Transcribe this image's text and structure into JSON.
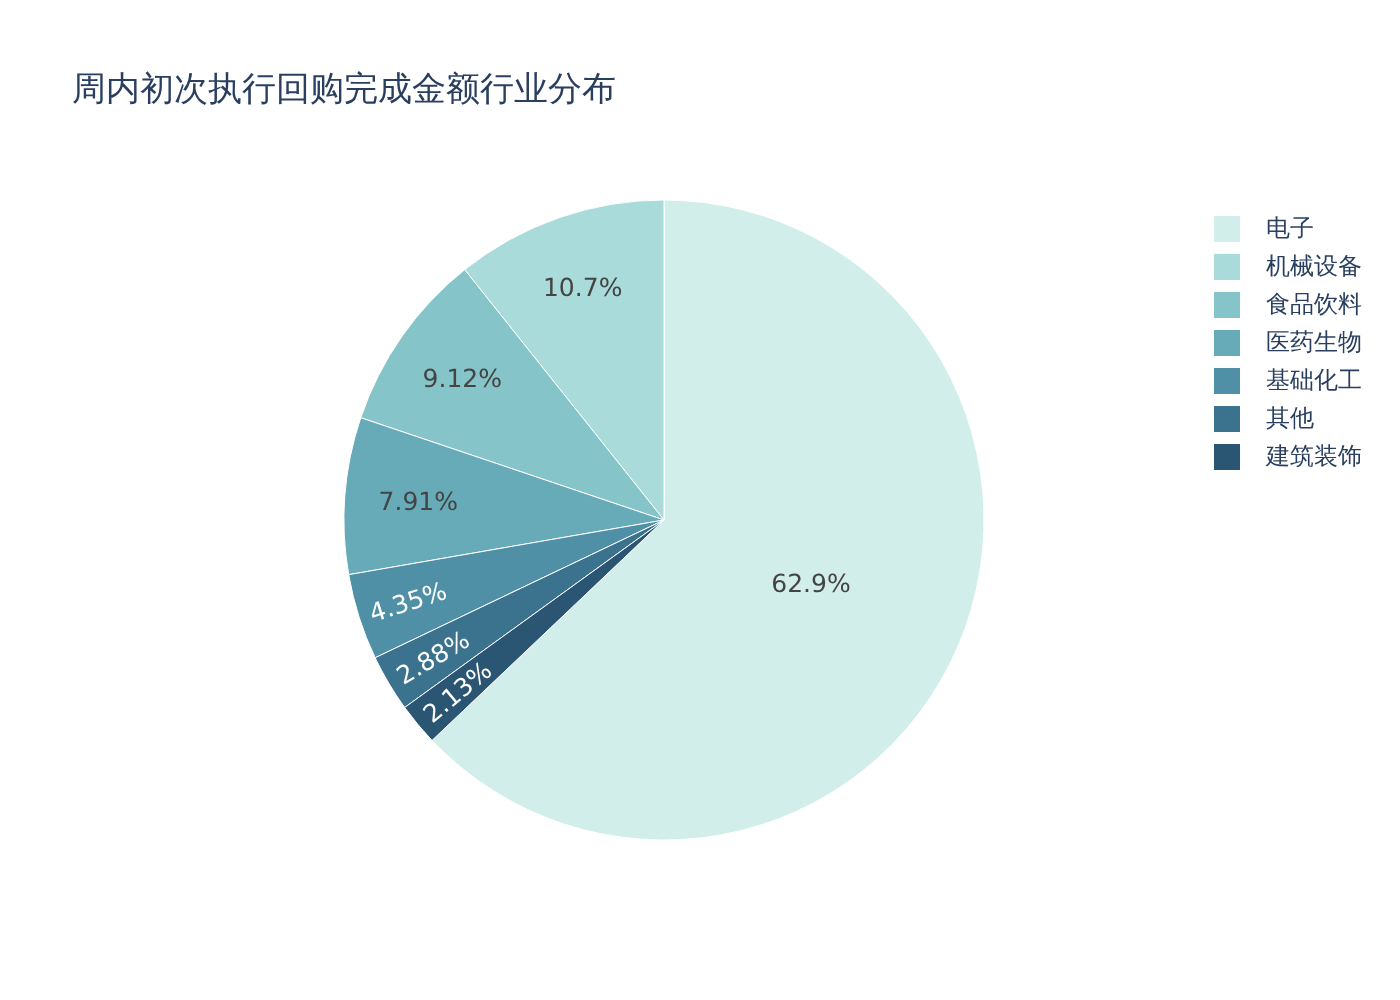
{
  "chart_data": {
    "type": "pie",
    "title": "周内初次执行回购完成金额行业分布",
    "categories": [
      "电子",
      "机械设备",
      "食品饮料",
      "医药生物",
      "基础化工",
      "其他",
      "建筑装饰"
    ],
    "values": [
      62.9,
      10.7,
      9.12,
      7.91,
      4.35,
      2.88,
      2.13
    ],
    "colors": [
      "#d1eeea",
      "#a8dbd9",
      "#85c4c9",
      "#68abb8",
      "#4f90a6",
      "#3b738f",
      "#2a5674"
    ],
    "value_labels": [
      "62.9%",
      "10.7%",
      "9.12%",
      "7.91%",
      "4.35%",
      "2.88%",
      "2.13%"
    ],
    "legend": "top right"
  }
}
